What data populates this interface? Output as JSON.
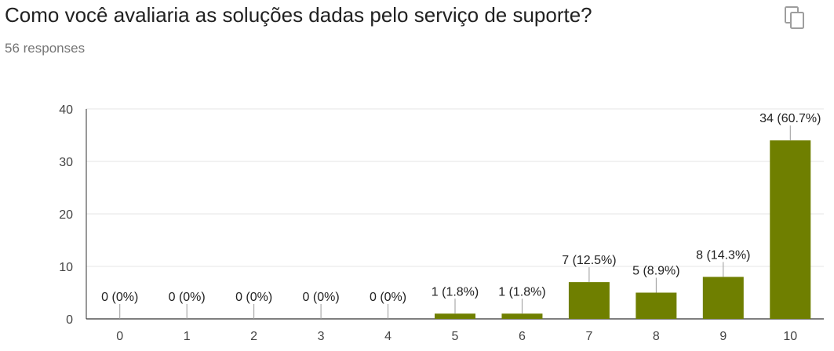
{
  "question": {
    "title": "Como você avaliaria as soluções dadas pelo serviço de suporte?",
    "responses": "56 responses",
    "copy_icon": "copy-icon"
  },
  "colors": {
    "bar": "#6f7f00",
    "grid": "#e6e6e6",
    "axis": "#333333"
  },
  "chart_data": {
    "type": "bar",
    "categories": [
      "0",
      "1",
      "2",
      "3",
      "4",
      "5",
      "6",
      "7",
      "8",
      "9",
      "10"
    ],
    "values": [
      0,
      0,
      0,
      0,
      0,
      1,
      1,
      7,
      5,
      8,
      34
    ],
    "data_labels": [
      "0 (0%)",
      "0 (0%)",
      "0 (0%)",
      "0 (0%)",
      "0 (0%)",
      "1 (1.8%)",
      "1 (1.8%)",
      "7 (12.5%)",
      "5 (8.9%)",
      "8 (14.3%)",
      "34 (60.7%)"
    ],
    "yticks": [
      "0",
      "10",
      "20",
      "30",
      "40"
    ],
    "ylim": [
      0,
      40
    ],
    "grid": true,
    "legend": "none"
  }
}
